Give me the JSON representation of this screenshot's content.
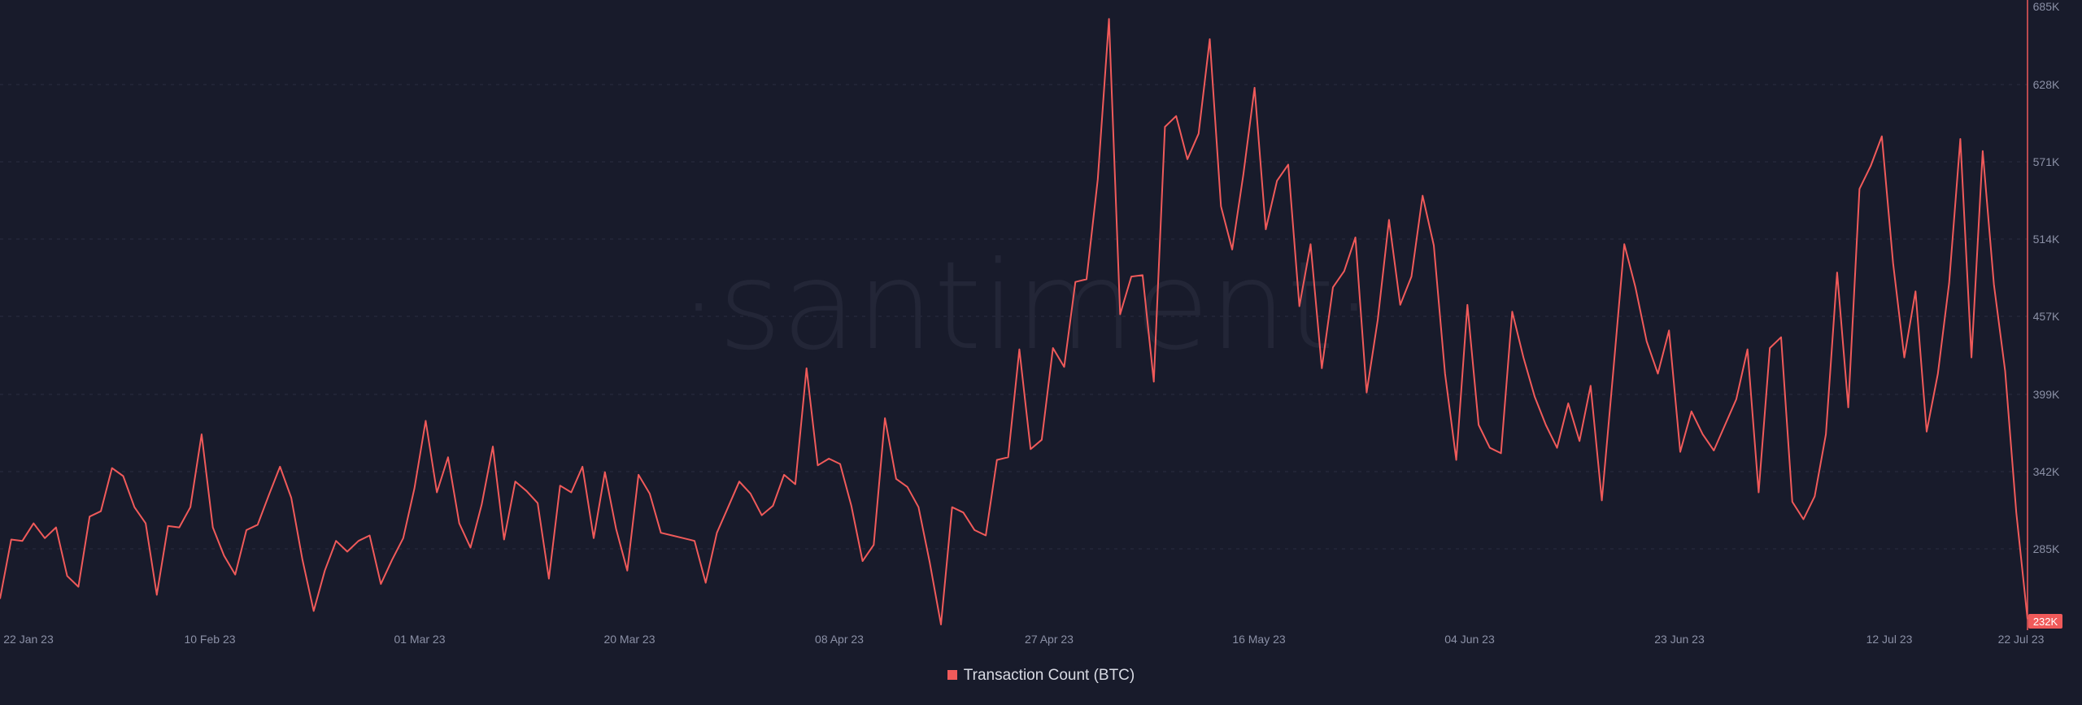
{
  "colors": {
    "background": "#181b2b",
    "series": "#f05a5a",
    "grid": "#2a2e42",
    "axis_text": "#8b90a6",
    "watermark": "#232637"
  },
  "watermark": "·santiment·",
  "legend": {
    "label": "Transaction Count (BTC)"
  },
  "chart_data": {
    "type": "line",
    "title": "",
    "xlabel": "",
    "ylabel": "",
    "x_start": "2023-01-22",
    "x_tick_labels": [
      "22 Jan 23",
      "10 Feb 23",
      "01 Mar 23",
      "20 Mar 23",
      "08 Apr 23",
      "27 Apr 23",
      "16 May 23",
      "04 Jun 23",
      "23 Jun 23",
      "12 Jul 23",
      "22 Jul 23"
    ],
    "y_tick_labels": [
      "685K",
      "628K",
      "571K",
      "514K",
      "457K",
      "399K",
      "342K",
      "285K",
      "232K"
    ],
    "ylim": [
      228000,
      685000
    ],
    "grid": true,
    "grid_style": "dashed",
    "y_axis_position": "right",
    "last_value_badge": "232K",
    "series": [
      {
        "name": "Transaction Count (BTC)",
        "color": "#f05a5a",
        "x": [
          "2023-01-22",
          "2023-01-23",
          "2023-01-24",
          "2023-01-25",
          "2023-01-26",
          "2023-01-27",
          "2023-01-28",
          "2023-01-29",
          "2023-01-30",
          "2023-01-31",
          "2023-02-01",
          "2023-02-02",
          "2023-02-03",
          "2023-02-04",
          "2023-02-05",
          "2023-02-06",
          "2023-02-07",
          "2023-02-08",
          "2023-02-09",
          "2023-02-10",
          "2023-02-11",
          "2023-02-12",
          "2023-02-13",
          "2023-02-14",
          "2023-02-15",
          "2023-02-16",
          "2023-02-17",
          "2023-02-18",
          "2023-02-19",
          "2023-02-20",
          "2023-02-21",
          "2023-02-22",
          "2023-02-23",
          "2023-02-24",
          "2023-02-25",
          "2023-02-26",
          "2023-02-27",
          "2023-02-28",
          "2023-03-01",
          "2023-03-02",
          "2023-03-03",
          "2023-03-04",
          "2023-03-05",
          "2023-03-06",
          "2023-03-07",
          "2023-03-08",
          "2023-03-09",
          "2023-03-10",
          "2023-03-11",
          "2023-03-12",
          "2023-03-13",
          "2023-03-14",
          "2023-03-15",
          "2023-03-16",
          "2023-03-17",
          "2023-03-18",
          "2023-03-19",
          "2023-03-20",
          "2023-03-21",
          "2023-03-22",
          "2023-03-23",
          "2023-03-24",
          "2023-03-25",
          "2023-03-26",
          "2023-03-27",
          "2023-03-28",
          "2023-03-29",
          "2023-03-30",
          "2023-03-31",
          "2023-04-01",
          "2023-04-02",
          "2023-04-03",
          "2023-04-04",
          "2023-04-05",
          "2023-04-06",
          "2023-04-07",
          "2023-04-08",
          "2023-04-09",
          "2023-04-10",
          "2023-04-11",
          "2023-04-12",
          "2023-04-13",
          "2023-04-14",
          "2023-04-15",
          "2023-04-16",
          "2023-04-17",
          "2023-04-18",
          "2023-04-19",
          "2023-04-20",
          "2023-04-21",
          "2023-04-22",
          "2023-04-23",
          "2023-04-24",
          "2023-04-25",
          "2023-04-26",
          "2023-04-27",
          "2023-04-28",
          "2023-04-29",
          "2023-04-30",
          "2023-05-01",
          "2023-05-02",
          "2023-05-03",
          "2023-05-04",
          "2023-05-05",
          "2023-05-06",
          "2023-05-07",
          "2023-05-08",
          "2023-05-09",
          "2023-05-10",
          "2023-05-11",
          "2023-05-12",
          "2023-05-13",
          "2023-05-14",
          "2023-05-15",
          "2023-05-16",
          "2023-05-17",
          "2023-05-18",
          "2023-05-19",
          "2023-05-20",
          "2023-05-21",
          "2023-05-22",
          "2023-05-23",
          "2023-05-24",
          "2023-05-25",
          "2023-05-26",
          "2023-05-27",
          "2023-05-28",
          "2023-05-29",
          "2023-05-30",
          "2023-05-31",
          "2023-06-01",
          "2023-06-02",
          "2023-06-03",
          "2023-06-04",
          "2023-06-05",
          "2023-06-06",
          "2023-06-07",
          "2023-06-08",
          "2023-06-09",
          "2023-06-10",
          "2023-06-11",
          "2023-06-12",
          "2023-06-13",
          "2023-06-14",
          "2023-06-15",
          "2023-06-16",
          "2023-06-17",
          "2023-06-18",
          "2023-06-19",
          "2023-06-20",
          "2023-06-21",
          "2023-06-22",
          "2023-06-23",
          "2023-06-24",
          "2023-06-25",
          "2023-06-26",
          "2023-06-27",
          "2023-06-28",
          "2023-06-29",
          "2023-06-30",
          "2023-07-01",
          "2023-07-02",
          "2023-07-03",
          "2023-07-04",
          "2023-07-05",
          "2023-07-06",
          "2023-07-07",
          "2023-07-08",
          "2023-07-09",
          "2023-07-10",
          "2023-07-11",
          "2023-07-12",
          "2023-07-13",
          "2023-07-14",
          "2023-07-15",
          "2023-07-16",
          "2023-07-17",
          "2023-07-18",
          "2023-07-19",
          "2023-07-20",
          "2023-07-21",
          "2023-07-22"
        ],
        "values": [
          247000,
          291000,
          290000,
          303000,
          292000,
          300000,
          264000,
          256000,
          308000,
          312000,
          344000,
          338000,
          315000,
          303000,
          250000,
          301000,
          300000,
          315000,
          369000,
          300000,
          279000,
          265000,
          298000,
          302000,
          324000,
          345000,
          322000,
          276000,
          238000,
          268000,
          290000,
          282000,
          290000,
          294000,
          258000,
          276000,
          292000,
          329000,
          379000,
          326000,
          352000,
          303000,
          285000,
          317000,
          360000,
          291000,
          334000,
          327000,
          318000,
          262000,
          331000,
          326000,
          345000,
          292000,
          341000,
          299000,
          268000,
          339000,
          325000,
          296000,
          294000,
          292000,
          290000,
          259000,
          296000,
          315000,
          334000,
          325000,
          309000,
          316000,
          339000,
          332000,
          418000,
          346000,
          351000,
          347000,
          316000,
          275000,
          287000,
          381000,
          336000,
          330000,
          315000,
          274000,
          228000,
          315000,
          311000,
          298000,
          294000,
          350000,
          352000,
          432000,
          358000,
          365000,
          433000,
          419000,
          482000,
          484000,
          558000,
          677000,
          458000,
          486000,
          487000,
          408000,
          597000,
          605000,
          573000,
          592000,
          662000,
          538000,
          506000,
          562000,
          626000,
          521000,
          557000,
          569000,
          464000,
          510000,
          418000,
          478000,
          490000,
          515000,
          400000,
          454000,
          528000,
          465000,
          486000,
          546000,
          509000,
          414000,
          350000,
          465000,
          376000,
          359000,
          355000,
          460000,
          426000,
          397000,
          376000,
          359000,
          392000,
          364000,
          405000,
          320000,
          414000,
          510000,
          478000,
          438000,
          414000,
          446000,
          356000,
          386000,
          369000,
          357000,
          376000,
          395000,
          432000,
          326000,
          433000,
          441000,
          319000,
          306000,
          323000,
          369000,
          489000,
          389000,
          551000,
          568000,
          590000,
          496000,
          426000,
          475000,
          371000,
          414000,
          481000,
          588000,
          426000,
          579000,
          480000,
          416000,
          311000,
          232000
        ]
      }
    ]
  }
}
